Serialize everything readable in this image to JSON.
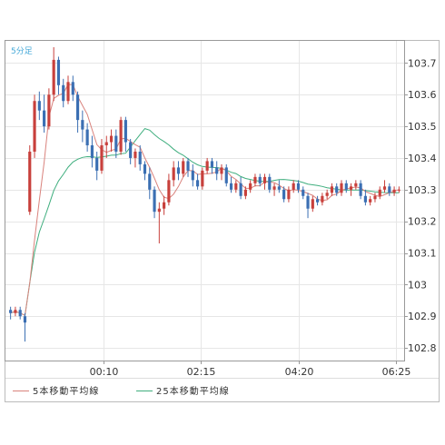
{
  "chart_data": {
    "type": "candlestick",
    "timeframe_label": "5分足",
    "x_tick_labels": [
      "00:10",
      "02:15",
      "04:20",
      "06:25"
    ],
    "y_tick_labels": [
      "103.7",
      "103.6",
      "103.5",
      "103.4",
      "103.3",
      "103.2",
      "103.1",
      "103",
      "102.9",
      "102.8"
    ],
    "y_ticks": [
      103.7,
      103.6,
      103.5,
      103.4,
      103.3,
      103.2,
      103.1,
      103.0,
      102.9,
      102.8
    ],
    "ylim": [
      102.76,
      103.77
    ],
    "legend": [
      {
        "name": "5本移動平均線",
        "color": "#d9827c"
      },
      {
        "name": "25本移動平均線",
        "color": "#3fae7e"
      }
    ],
    "colors": {
      "bullish": "#c8403c",
      "bearish": "#3b6fb3",
      "grid": "#e6e6e6",
      "axis": "#999999"
    },
    "candles": [
      [
        102.92,
        102.93,
        102.89,
        102.91
      ],
      [
        102.91,
        102.93,
        102.9,
        102.92
      ],
      [
        102.92,
        102.93,
        102.89,
        102.9
      ],
      [
        102.9,
        102.91,
        102.82,
        102.88
      ],
      [
        103.23,
        103.44,
        103.22,
        103.42
      ],
      [
        103.42,
        103.6,
        103.4,
        103.58
      ],
      [
        103.58,
        103.61,
        103.52,
        103.55
      ],
      [
        103.55,
        103.6,
        103.48,
        103.5
      ],
      [
        103.5,
        103.62,
        103.49,
        103.6
      ],
      [
        103.6,
        103.75,
        103.58,
        103.71
      ],
      [
        103.71,
        103.72,
        103.6,
        103.63
      ],
      [
        103.63,
        103.65,
        103.56,
        103.58
      ],
      [
        103.58,
        103.66,
        103.57,
        103.64
      ],
      [
        103.64,
        103.66,
        103.58,
        103.6
      ],
      [
        103.6,
        103.61,
        103.48,
        103.52
      ],
      [
        103.52,
        103.55,
        103.45,
        103.49
      ],
      [
        103.49,
        103.51,
        103.42,
        103.44
      ],
      [
        103.44,
        103.47,
        103.37,
        103.4
      ],
      [
        103.4,
        103.42,
        103.33,
        103.36
      ],
      [
        103.36,
        103.46,
        103.35,
        103.44
      ],
      [
        103.44,
        103.47,
        103.4,
        103.45
      ],
      [
        103.45,
        103.49,
        103.42,
        103.47
      ],
      [
        103.47,
        103.49,
        103.4,
        103.42
      ],
      [
        103.42,
        103.53,
        103.41,
        103.52
      ],
      [
        103.52,
        103.53,
        103.42,
        103.45
      ],
      [
        103.45,
        103.46,
        103.38,
        103.4
      ],
      [
        103.4,
        103.43,
        103.37,
        103.42
      ],
      [
        103.42,
        103.44,
        103.36,
        103.38
      ],
      [
        103.38,
        103.39,
        103.33,
        103.35
      ],
      [
        103.35,
        103.37,
        103.27,
        103.3
      ],
      [
        103.3,
        103.31,
        103.21,
        103.23
      ],
      [
        103.23,
        103.26,
        103.13,
        103.24
      ],
      [
        103.24,
        103.28,
        103.22,
        103.26
      ],
      [
        103.26,
        103.35,
        103.25,
        103.33
      ],
      [
        103.33,
        103.39,
        103.31,
        103.37
      ],
      [
        103.37,
        103.39,
        103.33,
        103.35
      ],
      [
        103.35,
        103.4,
        103.34,
        103.39
      ],
      [
        103.39,
        103.4,
        103.34,
        103.36
      ],
      [
        103.36,
        103.38,
        103.31,
        103.33
      ],
      [
        103.33,
        103.35,
        103.3,
        103.31
      ],
      [
        103.31,
        103.37,
        103.3,
        103.36
      ],
      [
        103.36,
        103.4,
        103.35,
        103.39
      ],
      [
        103.39,
        103.4,
        103.35,
        103.37
      ],
      [
        103.37,
        103.39,
        103.33,
        103.35
      ],
      [
        103.35,
        103.38,
        103.33,
        103.37
      ],
      [
        103.37,
        103.38,
        103.31,
        103.32
      ],
      [
        103.32,
        103.34,
        103.29,
        103.3
      ],
      [
        103.3,
        103.33,
        103.29,
        103.32
      ],
      [
        103.32,
        103.34,
        103.27,
        103.28
      ],
      [
        103.28,
        103.31,
        103.27,
        103.3
      ],
      [
        103.3,
        103.33,
        103.29,
        103.32
      ],
      [
        103.32,
        103.35,
        103.31,
        103.34
      ],
      [
        103.34,
        103.35,
        103.31,
        103.32
      ],
      [
        103.32,
        103.35,
        103.3,
        103.34
      ],
      [
        103.34,
        103.35,
        103.29,
        103.3
      ],
      [
        103.3,
        103.32,
        103.28,
        103.31
      ],
      [
        103.31,
        103.33,
        103.29,
        103.3
      ],
      [
        103.3,
        103.31,
        103.26,
        103.27
      ],
      [
        103.27,
        103.31,
        103.26,
        103.3
      ],
      [
        103.3,
        103.33,
        103.29,
        103.32
      ],
      [
        103.32,
        103.33,
        103.29,
        103.3
      ],
      [
        103.3,
        103.31,
        103.27,
        103.28
      ],
      [
        103.28,
        103.29,
        103.21,
        103.24
      ],
      [
        103.24,
        103.28,
        103.23,
        103.27
      ],
      [
        103.27,
        103.28,
        103.25,
        103.26
      ],
      [
        103.26,
        103.29,
        103.25,
        103.28
      ],
      [
        103.28,
        103.3,
        103.27,
        103.29
      ],
      [
        103.29,
        103.32,
        103.28,
        103.31
      ],
      [
        103.31,
        103.32,
        103.28,
        103.29
      ],
      [
        103.29,
        103.33,
        103.28,
        103.32
      ],
      [
        103.32,
        103.33,
        103.29,
        103.3
      ],
      [
        103.3,
        103.32,
        103.28,
        103.31
      ],
      [
        103.31,
        103.33,
        103.3,
        103.32
      ],
      [
        103.32,
        103.33,
        103.27,
        103.28
      ],
      [
        103.28,
        103.3,
        103.25,
        103.26
      ],
      [
        103.26,
        103.28,
        103.25,
        103.27
      ],
      [
        103.27,
        103.29,
        103.26,
        103.28
      ],
      [
        103.28,
        103.31,
        103.27,
        103.3
      ],
      [
        103.3,
        103.33,
        103.29,
        103.31
      ],
      [
        103.31,
        103.32,
        103.28,
        103.29
      ],
      [
        103.29,
        103.31,
        103.28,
        103.3
      ],
      [
        103.3,
        103.31,
        103.29,
        103.3
      ]
    ]
  }
}
